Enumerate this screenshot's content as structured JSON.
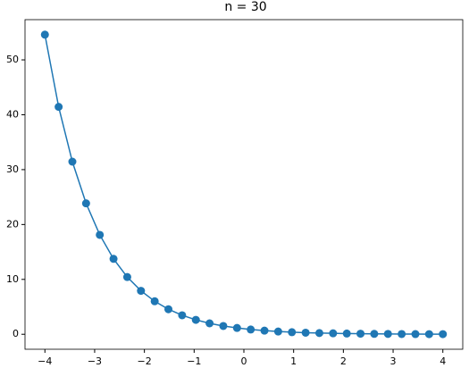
{
  "chart_data": {
    "type": "line",
    "title": "n = 30",
    "x": [
      -4,
      -3.7241,
      -3.4483,
      -3.1724,
      -2.8966,
      -2.6207,
      -2.3448,
      -2.069,
      -1.7931,
      -1.5172,
      -1.2414,
      -0.9655,
      -0.6897,
      -0.4138,
      -0.1379,
      0.1379,
      0.4138,
      0.6897,
      0.9655,
      1.2414,
      1.5172,
      1.7931,
      2.069,
      2.3448,
      2.6207,
      2.8966,
      3.1724,
      3.4483,
      3.7241,
      4
    ],
    "series": [
      {
        "name": "n = 30",
        "color": "#1f77b4",
        "values": [
          54.6,
          41.44,
          31.45,
          23.86,
          18.11,
          13.74,
          10.43,
          7.92,
          6.01,
          4.56,
          3.46,
          2.63,
          1.99,
          1.51,
          1.15,
          0.87,
          0.66,
          0.5,
          0.38,
          0.29,
          0.22,
          0.17,
          0.13,
          0.1,
          0.07,
          0.06,
          0.04,
          0.03,
          0.02,
          0.02
        ]
      }
    ],
    "xlim": [
      -4.4,
      4.4
    ],
    "xticks": [
      {
        "value": -4,
        "label": "−4"
      },
      {
        "value": -3,
        "label": "−3"
      },
      {
        "value": -2,
        "label": "−2"
      },
      {
        "value": -1,
        "label": "−1"
      },
      0,
      1,
      2,
      3,
      4
    ],
    "ylim": [
      -2.73,
      57.33
    ],
    "yticks": [
      0,
      10,
      20,
      30,
      40,
      50
    ],
    "grid": false
  }
}
